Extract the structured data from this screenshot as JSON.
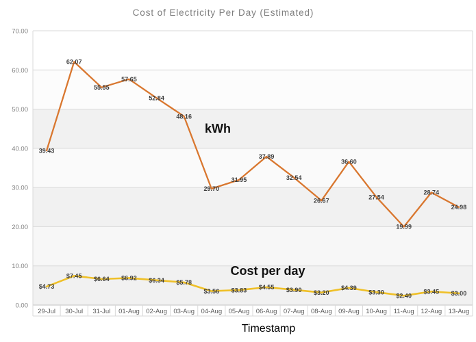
{
  "window": {
    "title": "Cost of Electricity Per Day (Estimated)"
  },
  "chart_data": {
    "type": "line",
    "title": "Cost of Electricity Per Day (Estimated)",
    "xlabel": "Timestamp",
    "ylabel": "",
    "ylim": [
      0,
      70
    ],
    "y_tick_labels": [
      "70.00",
      "60.00",
      "50.00",
      "40.00",
      "30.00",
      "20.00",
      "10.00",
      "0.00"
    ],
    "grid": true,
    "legend_position": "none-inline-annotations",
    "categories": [
      "29-Jul",
      "30-Jul",
      "31-Jul",
      "01-Aug",
      "02-Aug",
      "03-Aug",
      "04-Aug",
      "05-Aug",
      "06-Aug",
      "07-Aug",
      "08-Aug",
      "09-Aug",
      "10-Aug",
      "11-Aug",
      "12-Aug",
      "13-Aug"
    ],
    "series": [
      {
        "name": "kWh",
        "color": "#D9772F",
        "values": [
          39.43,
          62.07,
          55.55,
          57.65,
          52.84,
          48.16,
          29.7,
          31.95,
          37.89,
          32.54,
          26.67,
          36.6,
          27.54,
          19.99,
          28.74,
          24.98
        ],
        "labels": [
          "39.43",
          "62.07",
          "55.55",
          "57.65",
          "52.84",
          "48.16",
          "29.70",
          "31.95",
          "37.89",
          "32.54",
          "26.67",
          "36.60",
          "27.54",
          "19.99",
          "28.74",
          "24.98"
        ]
      },
      {
        "name": "Cost per day",
        "color": "#EFC028",
        "values": [
          4.73,
          7.45,
          6.64,
          6.92,
          6.34,
          5.78,
          3.56,
          3.83,
          4.55,
          3.9,
          3.2,
          4.39,
          3.3,
          2.4,
          3.45,
          3.0
        ],
        "labels": [
          "$4.73",
          "$7.45",
          "$6.64",
          "$6.92",
          "$6.34",
          "$5.78",
          "$3.56",
          "$3.83",
          "$4.55",
          "$3.90",
          "$3.20",
          "$4.39",
          "$3.30",
          "$2.40",
          "$3.45",
          "$3.00"
        ]
      }
    ],
    "annotations": [
      {
        "text": "kWh"
      },
      {
        "text": "Cost per day"
      }
    ]
  },
  "colors": {
    "kwh_line": "#D9772F",
    "cost_line": "#EFC028",
    "gridline": "#d9d9d9",
    "axis_line": "#c2c2c2",
    "band_shades": [
      "#ffffff",
      "#fcfcfc",
      "#f1f1f1",
      "#fafafa",
      "#f1f1f1",
      "#f7f7f7",
      "#f1f1f1"
    ],
    "title_text": "#7e7e7e",
    "axis_text": "#595959",
    "data_label_text": "#3d3d3d"
  }
}
